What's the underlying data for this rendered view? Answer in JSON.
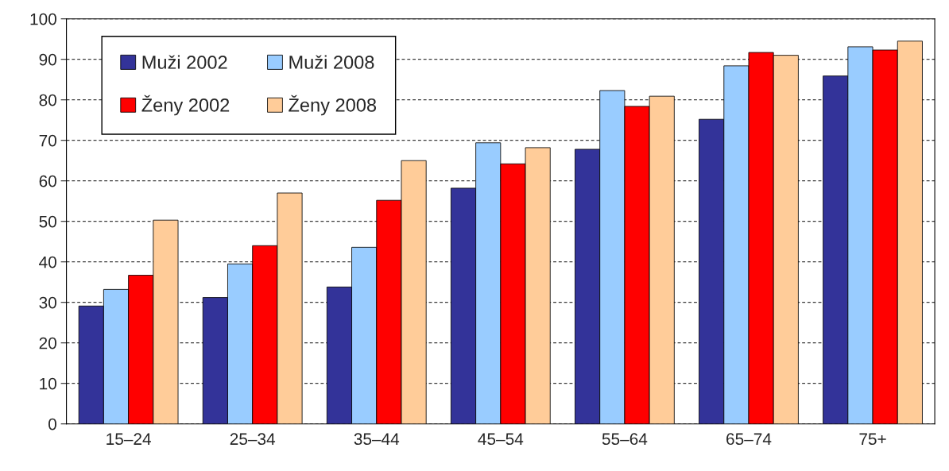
{
  "chart_data": {
    "type": "bar",
    "categories": [
      "15–24",
      "25–34",
      "35–44",
      "45–54",
      "55–64",
      "65–74",
      "75+"
    ],
    "series": [
      {
        "name": "Muži 2002",
        "color": "#333399",
        "values": [
          29.1,
          31.2,
          33.8,
          58.2,
          67.8,
          75.2,
          85.9
        ]
      },
      {
        "name": "Muži 2008",
        "color": "#99ccff",
        "values": [
          33.2,
          39.5,
          43.6,
          69.4,
          82.3,
          88.4,
          93.1
        ]
      },
      {
        "name": "Ženy 2002",
        "color": "#ff0000",
        "values": [
          36.7,
          44.0,
          55.2,
          64.2,
          78.4,
          91.7,
          92.3
        ]
      },
      {
        "name": "Ženy 2008",
        "color": "#ffcc99",
        "values": [
          50.3,
          57.0,
          65.0,
          68.2,
          80.9,
          91.0,
          94.5
        ]
      }
    ],
    "ylim": [
      0,
      100
    ],
    "yticks": [
      0,
      10,
      20,
      30,
      40,
      50,
      60,
      70,
      80,
      90,
      100
    ],
    "grid": "y",
    "legend": "top left"
  }
}
